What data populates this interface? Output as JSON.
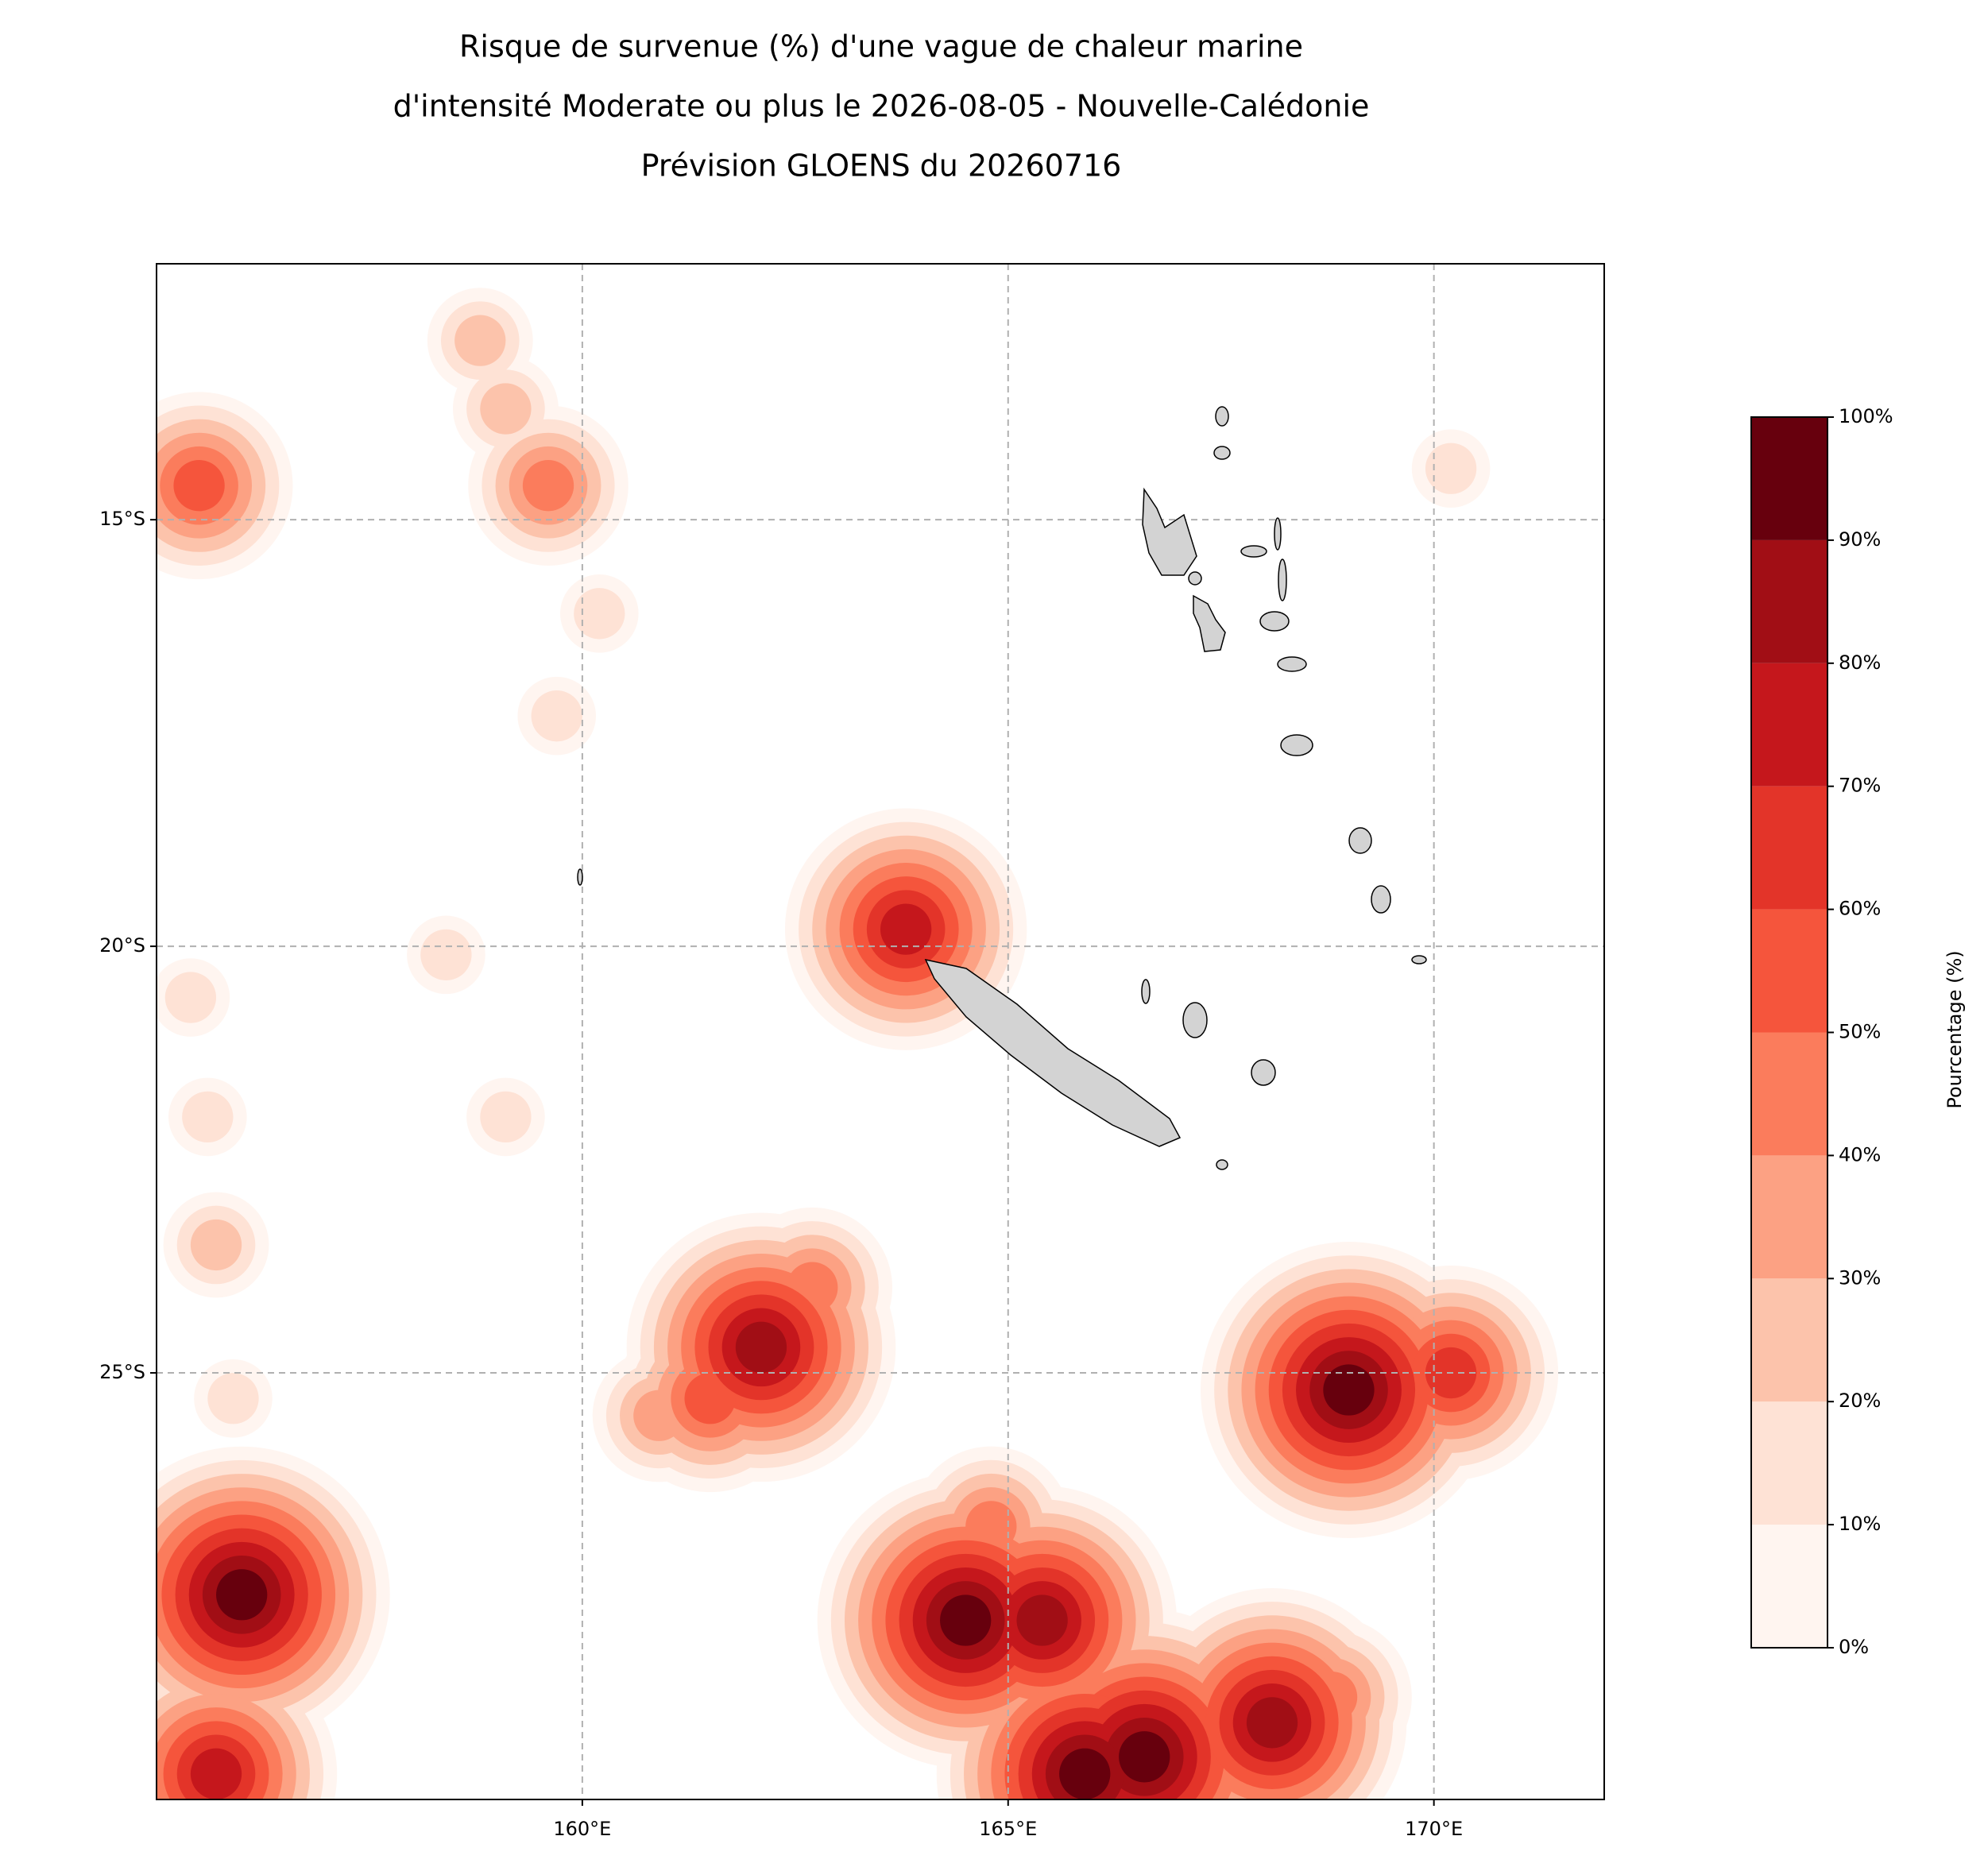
{
  "chart_data": {
    "type": "contour",
    "title": [
      "Risque de survenue (%) d'une vague de chaleur marine",
      "d'intensité Moderate ou plus le 2026-08-05 - Nouvelle-Calédonie",
      "Prévision GLOENS du 20260716"
    ],
    "xlim": [
      155,
      172
    ],
    "ylim": [
      -30,
      -12
    ],
    "xticks": [
      {
        "value": 160,
        "label": "160°E"
      },
      {
        "value": 165,
        "label": "165°E"
      },
      {
        "value": 170,
        "label": "170°E"
      }
    ],
    "yticks": [
      {
        "value": -15,
        "label": "15°S"
      },
      {
        "value": -20,
        "label": "20°S"
      },
      {
        "value": -25,
        "label": "25°S"
      }
    ],
    "grid": true,
    "colorbar_label": "Pourcentage (%)",
    "colorbar_ticks": [
      {
        "value": 0,
        "label": "0%"
      },
      {
        "value": 10,
        "label": "10%"
      },
      {
        "value": 20,
        "label": "20%"
      },
      {
        "value": 30,
        "label": "30%"
      },
      {
        "value": 40,
        "label": "40%"
      },
      {
        "value": 50,
        "label": "50%"
      },
      {
        "value": 60,
        "label": "60%"
      },
      {
        "value": 70,
        "label": "70%"
      },
      {
        "value": 80,
        "label": "80%"
      },
      {
        "value": 90,
        "label": "90%"
      },
      {
        "value": 100,
        "label": "100%"
      }
    ],
    "colors": [
      "#fff5f0",
      "#fee2d5",
      "#fcc3ab",
      "#fca183",
      "#fb7c5c",
      "#f5553c",
      "#e33429",
      "#c5171c",
      "#a10e15",
      "#67000d"
    ],
    "x": [
      155.8,
      155.5,
      158.8,
      159.1,
      159.6,
      160.2,
      159.7,
      155.4,
      155.6,
      155.7,
      155.9,
      159.1,
      158.4,
      156.0,
      155.7,
      162.1,
      161.5,
      160.9,
      162.7,
      163.8,
      169.0,
      170.2,
      169.6,
      164.5,
      165.4,
      166.6,
      165.9,
      168.1,
      168.8,
      164.0,
      164.8,
      167.5,
      170.2
    ],
    "y": [
      -14.3,
      -14.6,
      -12.9,
      -13.7,
      -14.6,
      -16.1,
      -17.3,
      -20.6,
      -22.0,
      -23.5,
      -25.3,
      -22.0,
      -20.1,
      -27.6,
      -29.7,
      -24.7,
      -25.3,
      -25.5,
      -24.0,
      -19.8,
      -25.2,
      -25.0,
      -24.4,
      -27.9,
      -27.9,
      -29.5,
      -29.7,
      -29.1,
      -28.8,
      -28.6,
      -26.8,
      -28.6,
      -14.4
    ],
    "values": [
      20,
      55,
      25,
      20,
      45,
      10,
      10,
      10,
      10,
      20,
      10,
      10,
      10,
      90,
      70,
      80,
      50,
      30,
      40,
      70,
      90,
      60,
      20,
      90,
      80,
      100,
      90,
      80,
      40,
      30,
      40,
      30,
      10
    ]
  }
}
